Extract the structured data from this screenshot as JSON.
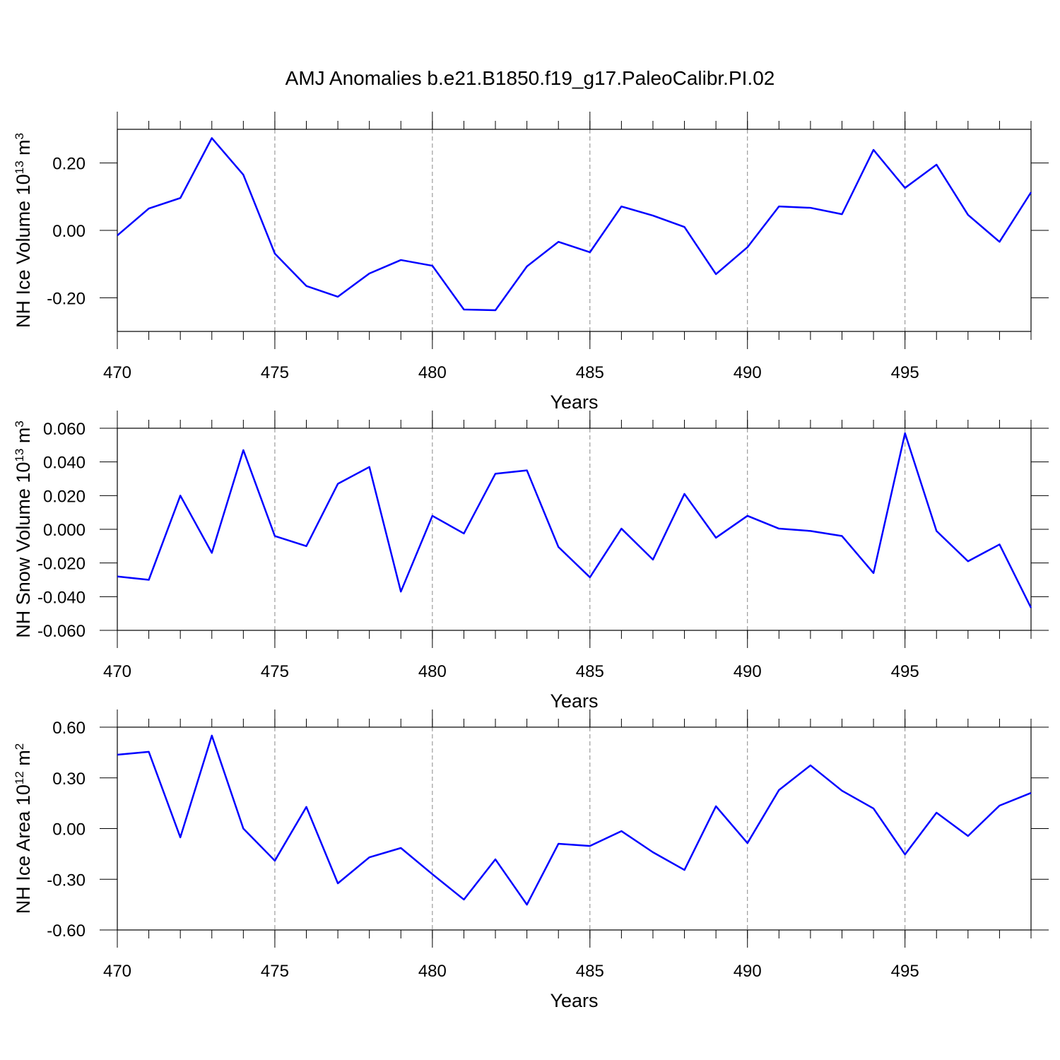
{
  "title": "AMJ Anomalies b.e21.B1850.f19_g17.PaleoCalibr.PI.02",
  "chart_data": [
    {
      "type": "line",
      "ylabel": [
        "NH Ice Volume 10",
        "13",
        " m",
        "3"
      ],
      "xlabel": "Years",
      "color": "#0000ff",
      "grid": true,
      "x": [
        470,
        471,
        472,
        473,
        474,
        475,
        476,
        477,
        478,
        479,
        480,
        481,
        482,
        483,
        484,
        485,
        486,
        487,
        488,
        489,
        490,
        491,
        492,
        493,
        494,
        495,
        496,
        497,
        498,
        499
      ],
      "values": [
        -0.015,
        0.065,
        0.096,
        0.274,
        0.165,
        -0.069,
        -0.165,
        -0.197,
        -0.128,
        -0.088,
        -0.105,
        -0.235,
        -0.237,
        -0.107,
        -0.034,
        -0.065,
        0.071,
        0.044,
        0.01,
        -0.13,
        -0.05,
        0.071,
        0.067,
        0.048,
        0.239,
        0.126,
        0.195,
        0.046,
        -0.034,
        0.113
      ],
      "xlim": [
        470,
        499
      ],
      "xticks": [
        470,
        475,
        480,
        485,
        490,
        495
      ],
      "ylim": [
        -0.3,
        0.3
      ],
      "yticks": [
        {
          "value": 0.2,
          "label": "0.20"
        },
        {
          "value": 0,
          "label": "0.00"
        },
        {
          "value": -0.2,
          "label": "-0.20"
        }
      ]
    },
    {
      "type": "line",
      "ylabel": [
        "NH Snow Volume 10",
        "13",
        " m",
        "3"
      ],
      "xlabel": "Years",
      "color": "#0000ff",
      "grid": true,
      "x": [
        470,
        471,
        472,
        473,
        474,
        475,
        476,
        477,
        478,
        479,
        480,
        481,
        482,
        483,
        484,
        485,
        486,
        487,
        488,
        489,
        490,
        491,
        492,
        493,
        494,
        495,
        496,
        497,
        498,
        499
      ],
      "values": [
        -0.028,
        -0.03,
        0.02,
        -0.014,
        0.047,
        -0.004,
        -0.01,
        0.027,
        0.037,
        -0.037,
        0.008,
        -0.0025,
        0.033,
        0.035,
        -0.0105,
        -0.0285,
        0.0004,
        -0.018,
        0.021,
        -0.005,
        0.008,
        0.0004,
        -0.001,
        -0.004,
        -0.026,
        0.057,
        -0.001,
        -0.019,
        -0.009,
        -0.0466
      ],
      "xlim": [
        470,
        499
      ],
      "xticks": [
        470,
        475,
        480,
        485,
        490,
        495
      ],
      "ylim": [
        -0.06,
        0.06
      ],
      "yticks": [
        {
          "value": 0.06,
          "label": "0.060"
        },
        {
          "value": 0.04,
          "label": "0.040"
        },
        {
          "value": 0.02,
          "label": "0.020"
        },
        {
          "value": 0,
          "label": "0.000"
        },
        {
          "value": -0.02,
          "label": "-0.020"
        },
        {
          "value": -0.04,
          "label": "-0.040"
        },
        {
          "value": -0.06,
          "label": "-0.060"
        }
      ]
    },
    {
      "type": "line",
      "ylabel": [
        "NH Ice Area 10",
        "12",
        " m",
        "2"
      ],
      "xlabel": "Years",
      "color": "#0000ff",
      "grid": true,
      "x": [
        470,
        471,
        472,
        473,
        474,
        475,
        476,
        477,
        478,
        479,
        480,
        481,
        482,
        483,
        484,
        485,
        486,
        487,
        488,
        489,
        490,
        491,
        492,
        493,
        494,
        495,
        496,
        497,
        498,
        499
      ],
      "values": [
        0.437,
        0.454,
        -0.052,
        0.55,
        0.0,
        -0.19,
        0.128,
        -0.324,
        -0.17,
        -0.115,
        -0.27,
        -0.42,
        -0.182,
        -0.45,
        -0.09,
        -0.103,
        -0.015,
        -0.14,
        -0.245,
        0.132,
        -0.086,
        0.228,
        0.374,
        0.224,
        0.119,
        -0.153,
        0.094,
        -0.044,
        0.136,
        0.211
      ],
      "xlim": [
        470,
        499
      ],
      "xticks": [
        470,
        475,
        480,
        485,
        490,
        495
      ],
      "ylim": [
        -0.6,
        0.6
      ],
      "yticks": [
        {
          "value": 0.6,
          "label": "0.60"
        },
        {
          "value": 0.3,
          "label": "0.30"
        },
        {
          "value": 0,
          "label": "0.00"
        },
        {
          "value": -0.3,
          "label": "-0.30"
        },
        {
          "value": -0.6,
          "label": "-0.60"
        }
      ]
    }
  ]
}
